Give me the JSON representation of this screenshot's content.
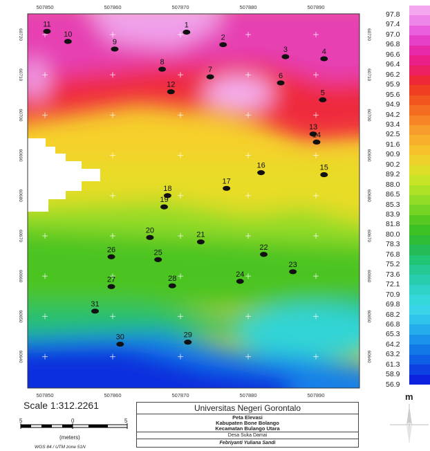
{
  "map": {
    "x_ticks": [
      "507850",
      "507860",
      "507870",
      "507880",
      "507890"
    ],
    "y_ticks": [
      "60720",
      "60710",
      "60700",
      "60690",
      "60680",
      "60670",
      "60660",
      "60650",
      "60640"
    ],
    "points": [
      {
        "id": "1",
        "x": 507870.9,
        "y": 60720.6
      },
      {
        "id": "2",
        "x": 507876.3,
        "y": 60717.5
      },
      {
        "id": "3",
        "x": 507885.5,
        "y": 60714.5
      },
      {
        "id": "4",
        "x": 507891.2,
        "y": 60714
      },
      {
        "id": "5",
        "x": 507891,
        "y": 60703.8
      },
      {
        "id": "6",
        "x": 507884.8,
        "y": 60708
      },
      {
        "id": "7",
        "x": 507874.4,
        "y": 60709.5
      },
      {
        "id": "8",
        "x": 507867.3,
        "y": 60711.4
      },
      {
        "id": "9",
        "x": 507860.3,
        "y": 60716.4
      },
      {
        "id": "10",
        "x": 507853.4,
        "y": 60718.3
      },
      {
        "id": "11",
        "x": 507850.3,
        "y": 60720.8
      },
      {
        "id": "12",
        "x": 507868.6,
        "y": 60705.8
      },
      {
        "id": "13",
        "x": 507889.6,
        "y": 60695.3
      },
      {
        "id": "14",
        "x": 507890.1,
        "y": 60693.3
      },
      {
        "id": "15",
        "x": 507891.2,
        "y": 60685.2
      },
      {
        "id": "16",
        "x": 507881.9,
        "y": 60685.7
      },
      {
        "id": "17",
        "x": 507876.8,
        "y": 60681.8
      },
      {
        "id": "18",
        "x": 507868.1,
        "y": 60680
      },
      {
        "id": "19",
        "x": 507867.6,
        "y": 60677.2
      },
      {
        "id": "20",
        "x": 507865.5,
        "y": 60669.6
      },
      {
        "id": "21",
        "x": 507873,
        "y": 60668.5
      },
      {
        "id": "22",
        "x": 507882.3,
        "y": 60665.4
      },
      {
        "id": "23",
        "x": 507886.6,
        "y": 60661.1
      },
      {
        "id": "24",
        "x": 507878.8,
        "y": 60658.7
      },
      {
        "id": "25",
        "x": 507866.7,
        "y": 60664.1
      },
      {
        "id": "26",
        "x": 507859.8,
        "y": 60664.8
      },
      {
        "id": "27",
        "x": 507859.8,
        "y": 60657.4
      },
      {
        "id": "28",
        "x": 507868.8,
        "y": 60657.6
      },
      {
        "id": "29",
        "x": 507871.1,
        "y": 60643.6
      },
      {
        "id": "30",
        "x": 507861.1,
        "y": 60643.1
      },
      {
        "id": "31",
        "x": 507857.4,
        "y": 60651.3
      }
    ]
  },
  "legend": {
    "unit": "m",
    "levels": [
      "97.8",
      "97.4",
      "97.0",
      "96.8",
      "96.6",
      "96.4",
      "96.2",
      "95.9",
      "95.6",
      "94.9",
      "94.2",
      "93.4",
      "92.5",
      "91.6",
      "90.9",
      "90.2",
      "89.2",
      "88.0",
      "86.5",
      "85.3",
      "83.9",
      "81.8",
      "80.0",
      "78.3",
      "76.8",
      "75.2",
      "73.6",
      "72.1",
      "70.9",
      "69.8",
      "68.2",
      "66.8",
      "65.3",
      "64.2",
      "63.2",
      "61.3",
      "58.9",
      "56.9"
    ],
    "colors": [
      "#f4a6ee",
      "#ee85e8",
      "#ea5fdd",
      "#e63fc8",
      "#e82aa8",
      "#ea2088",
      "#ec1f60",
      "#ef2838",
      "#f03e22",
      "#f2561f",
      "#f46c20",
      "#f58526",
      "#f69c2a",
      "#f8b02c",
      "#f5c22c",
      "#ecd22a",
      "#dede28",
      "#c8e426",
      "#aee226",
      "#92dc26",
      "#76d424",
      "#56c822",
      "#3cc024",
      "#2cbc38",
      "#24bc56",
      "#22c476",
      "#24c892",
      "#28ccae",
      "#2ed2c6",
      "#34d8da",
      "#3ad4e8",
      "#30c4ec",
      "#24acec",
      "#1a92ea",
      "#1278e8",
      "#0e5ee6",
      "#0c40e2",
      "#0c22de"
    ]
  },
  "scale": {
    "text": "Scale 1:312.2261",
    "ticks": [
      "5",
      "0",
      "5"
    ],
    "unit": "(meters)",
    "projection": "WGS 84 / UTM zone 51N"
  },
  "title_block": {
    "university": "Universitas Negeri Gorontalo",
    "map_title": "Peta Elevasi",
    "regency": "Kabupaten Bone Bolango",
    "district": "Kecamatan Bulango Utara",
    "village": "Desa Suka Damai",
    "author": "Febriyanti Yuliana Sandi"
  }
}
